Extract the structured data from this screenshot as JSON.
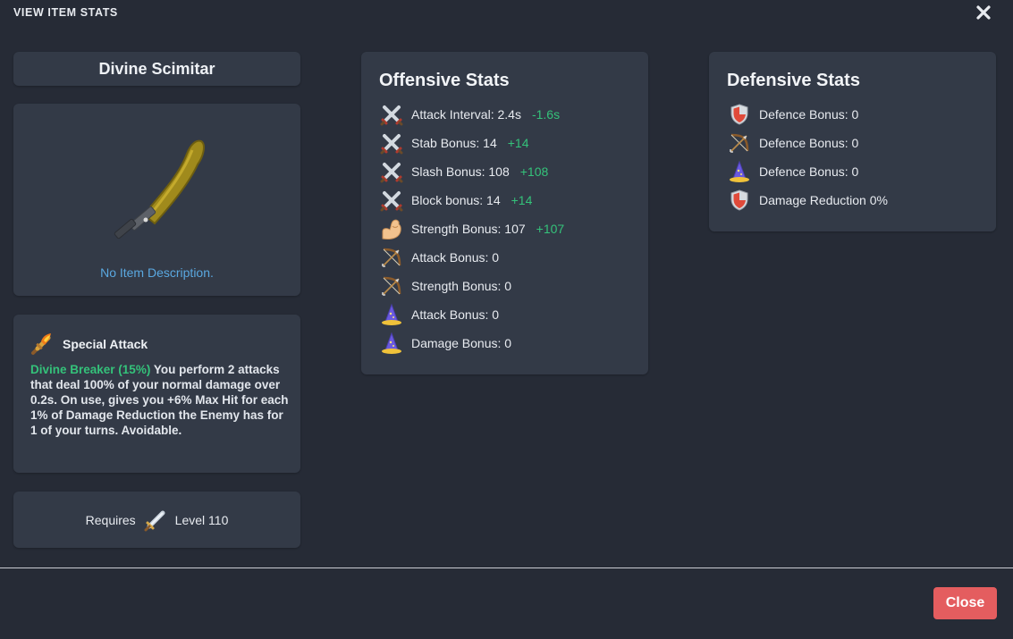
{
  "modal": {
    "title": "VIEW ITEM STATS",
    "close_label": "Close"
  },
  "item": {
    "name": "Divine Scimitar",
    "description": "No Item Description."
  },
  "special_attack": {
    "heading": "Special Attack",
    "name": "Divine Breaker (15%)",
    "text": " You perform 2 attacks that deal 100% of your normal damage over 0.2s. On use, gives you +6% Max Hit for each 1% of Damage Reduction the Enemy has for 1 of your turns. Avoidable."
  },
  "requirements": {
    "prefix": "Requires",
    "level": "Level 110",
    "icon": "attack-sword-icon"
  },
  "offensive": {
    "heading": "Offensive Stats",
    "stats": [
      {
        "icon": "crossed-swords-icon",
        "label": "Attack Interval: 2.4s",
        "delta": "-1.6s"
      },
      {
        "icon": "crossed-swords-icon",
        "label": "Stab Bonus: 14",
        "delta": "+14"
      },
      {
        "icon": "crossed-swords-icon",
        "label": "Slash Bonus: 108",
        "delta": "+108"
      },
      {
        "icon": "crossed-swords-icon",
        "label": "Block bonus: 14",
        "delta": "+14"
      },
      {
        "icon": "flexed-arm-icon",
        "label": "Strength Bonus: 107",
        "delta": "+107"
      },
      {
        "icon": "bow-icon",
        "label": "Attack Bonus: 0",
        "delta": ""
      },
      {
        "icon": "bow-icon",
        "label": "Strength Bonus: 0",
        "delta": ""
      },
      {
        "icon": "wizard-hat-icon",
        "label": "Attack Bonus: 0",
        "delta": ""
      },
      {
        "icon": "wizard-hat-icon",
        "label": "Damage Bonus: 0",
        "delta": ""
      }
    ]
  },
  "defensive": {
    "heading": "Defensive Stats",
    "stats": [
      {
        "icon": "shield-icon",
        "label": "Defence Bonus: 0"
      },
      {
        "icon": "bow-icon",
        "label": "Defence Bonus: 0"
      },
      {
        "icon": "wizard-hat-icon",
        "label": "Defence Bonus: 0"
      },
      {
        "icon": "shield-icon",
        "label": "Damage Reduction 0%"
      }
    ]
  },
  "colors": {
    "positive": "#34c27a",
    "link": "#5aa8e0",
    "close_button": "#e45d5f"
  }
}
